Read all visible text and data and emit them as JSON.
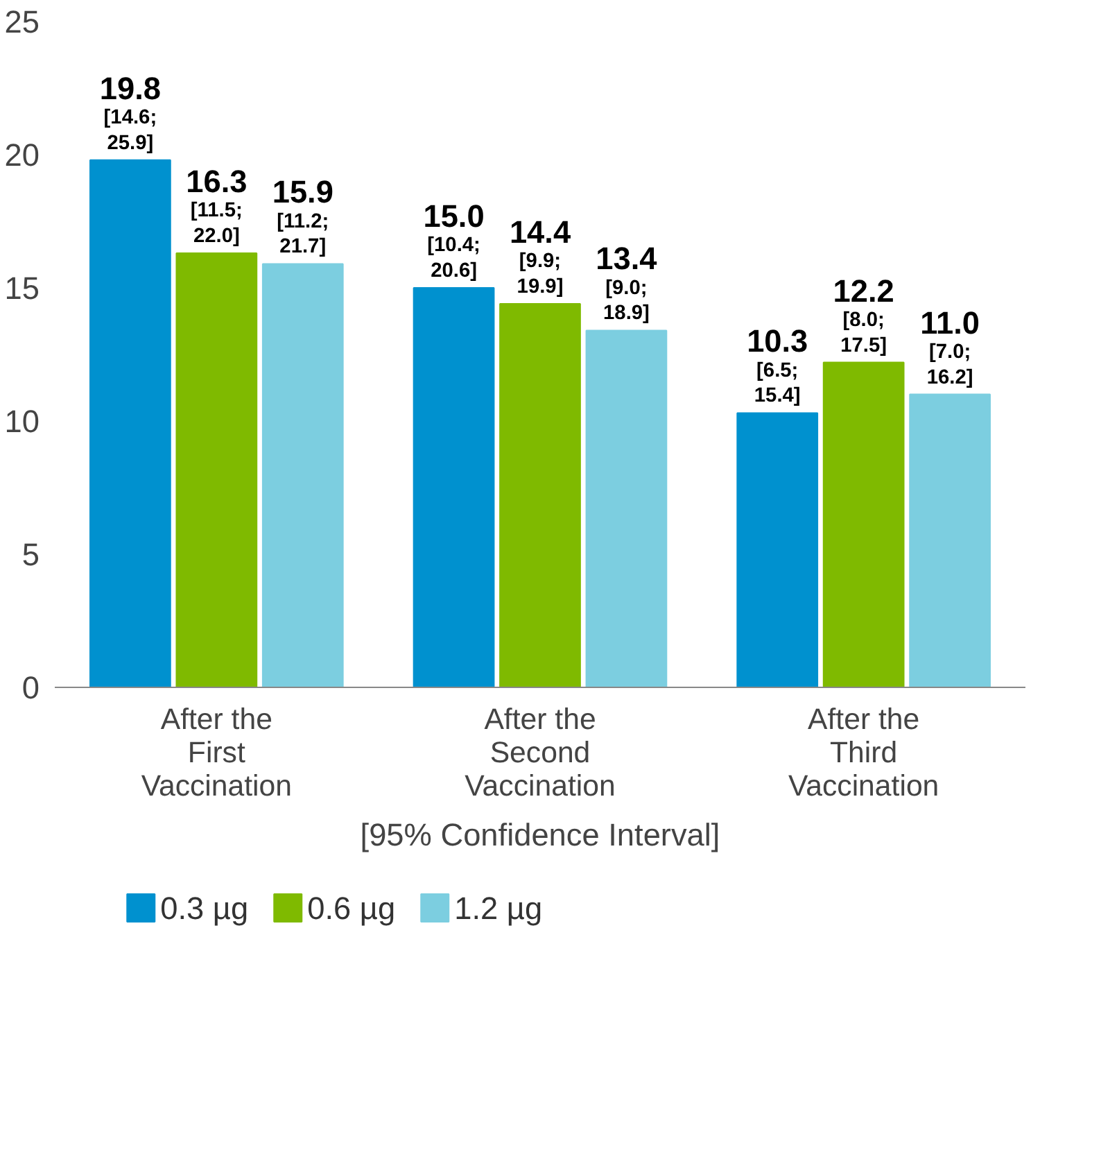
{
  "chart_data": {
    "type": "bar",
    "categories": [
      "After the\nFirst\nVaccination",
      "After the\nSecond\nVaccination",
      "After the\nThird\nVaccination"
    ],
    "series": [
      {
        "name": "0.3 µg",
        "color": "#0091cf",
        "values": [
          19.8,
          15.0,
          10.3
        ],
        "value_labels": [
          "19.8\n[14.6;\n25.9]",
          "15.0\n[10.4;\n20.6]",
          "10.3\n[6.5;\n15.4]"
        ]
      },
      {
        "name": "0.6 µg",
        "color": "#7fba00",
        "values": [
          16.3,
          14.4,
          12.2
        ],
        "value_labels": [
          "16.3\n[11.5;\n22.0]",
          "14.4\n[9.9;\n19.9]",
          "12.2\n[8.0;\n17.5]"
        ]
      },
      {
        "name": "1.2 µg",
        "color": "#7ccee0",
        "values": [
          15.9,
          13.4,
          11.0
        ],
        "value_labels": [
          "15.9\n[11.2;\n21.7]",
          "13.4\n[9.0;\n18.9]",
          "11.0\n[7.0;\n16.2]"
        ]
      }
    ],
    "ylim": [
      0,
      25
    ],
    "yticks": [
      0,
      5,
      10,
      15,
      20,
      25
    ],
    "grid": false,
    "legend": "bottom",
    "annotations": [
      "[95% Confidence Interval]"
    ]
  }
}
